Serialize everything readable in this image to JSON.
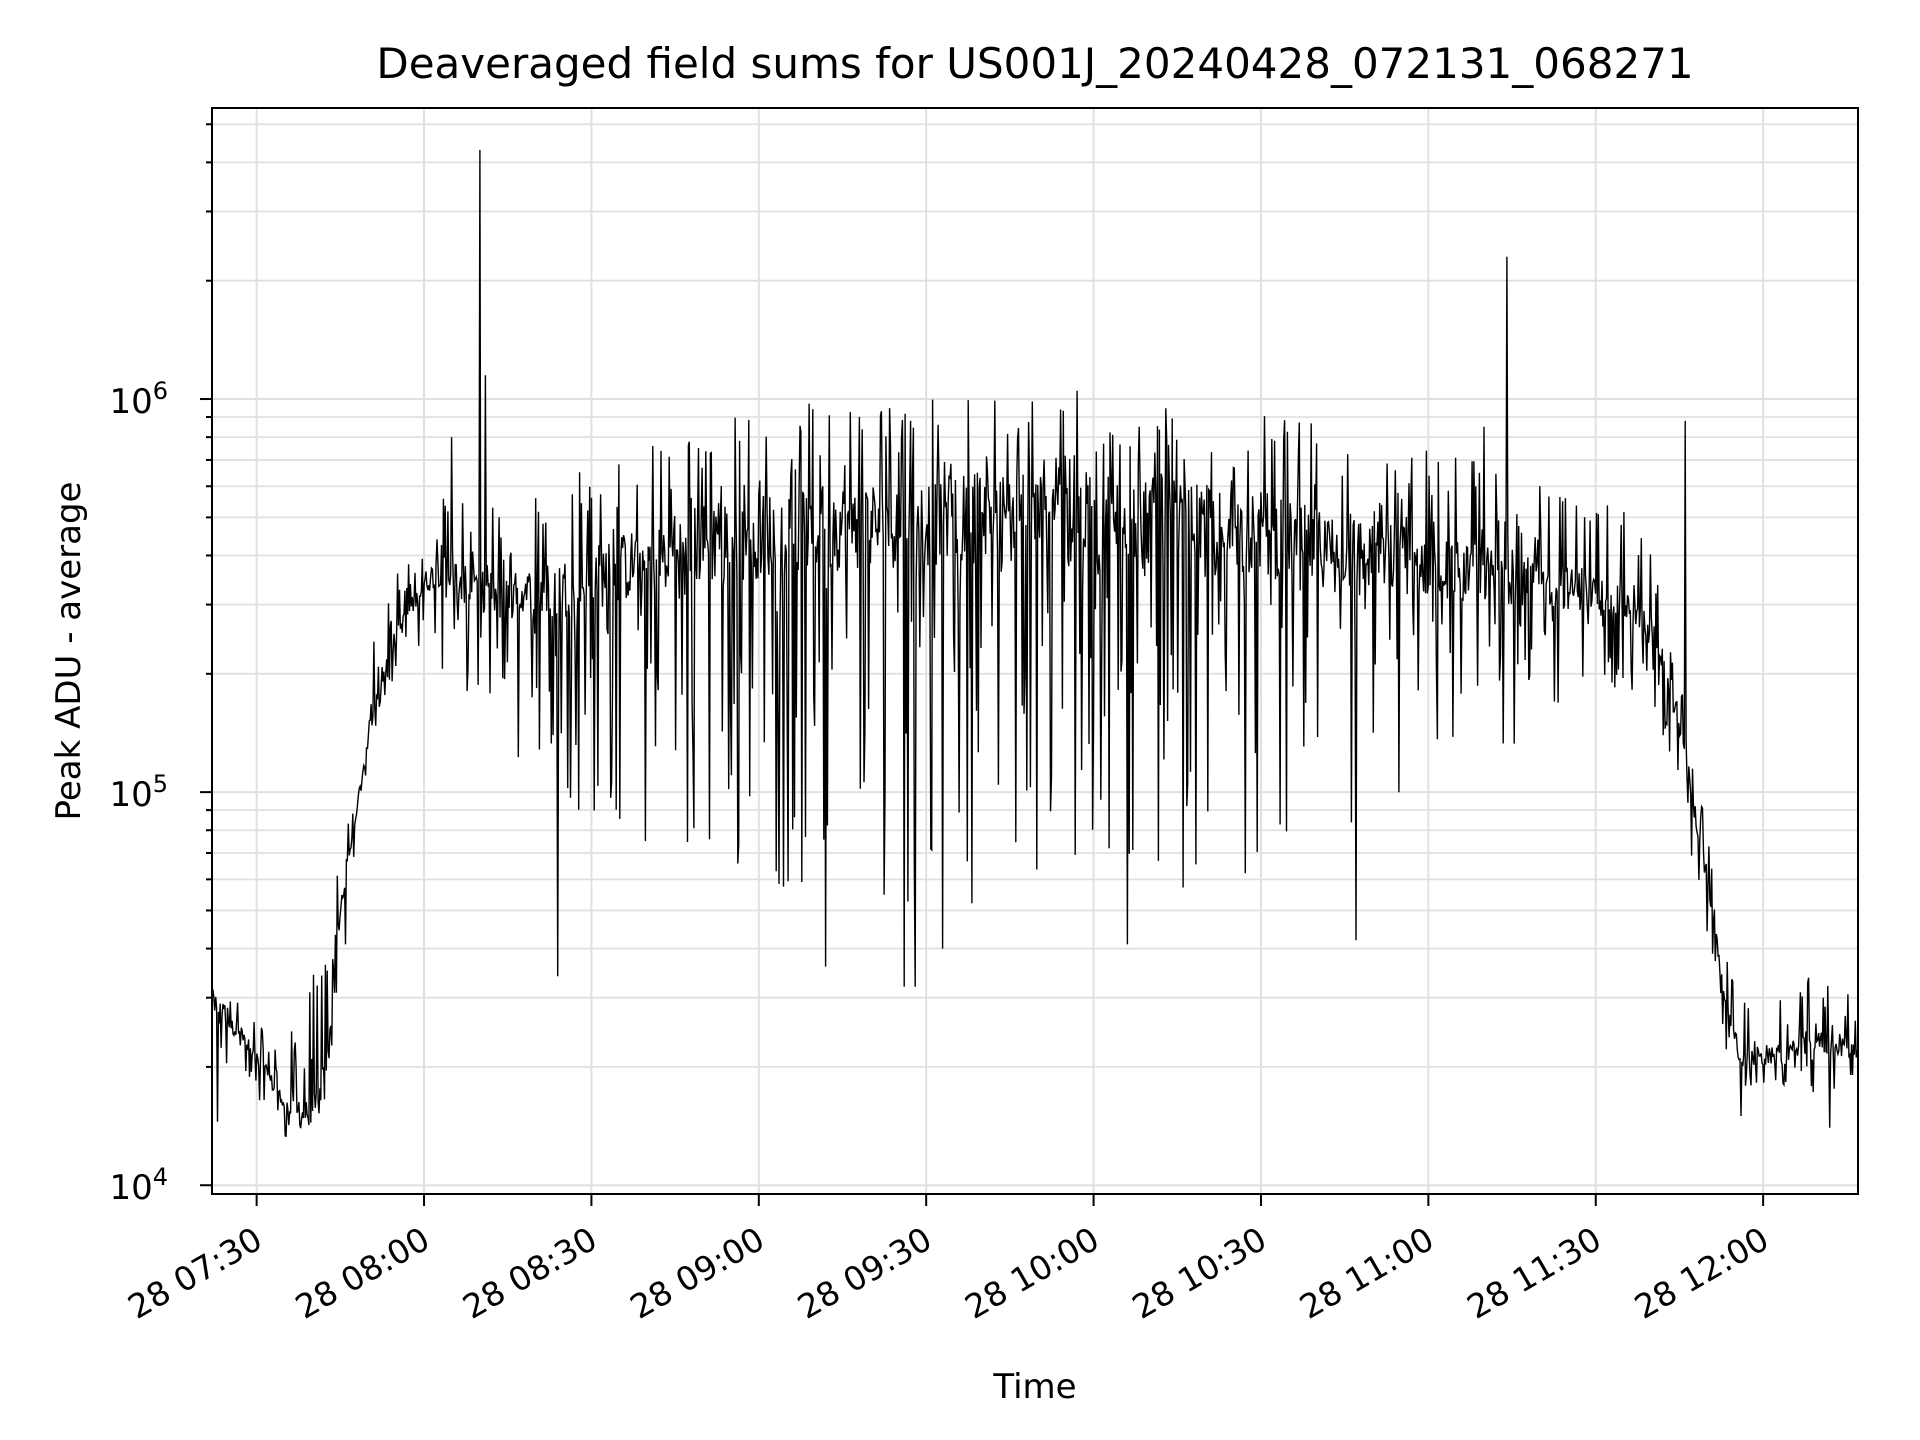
{
  "chart_data": {
    "type": "line",
    "title": "Deaveraged field sums for US001J_20240428_072131_068271",
    "xlabel": "Time",
    "ylabel": "Peak ADU - average",
    "y_scale": "log",
    "ylim": [
      9500,
      5500000
    ],
    "xlim": [
      "2024-04-28 07:22:00",
      "2024-04-28 12:17:00"
    ],
    "grid": true,
    "line_color": "#000000",
    "grid_color": "#e0e0e0",
    "x_tick_labels": [
      "28 07:30",
      "28 08:00",
      "28 08:30",
      "28 09:00",
      "28 09:30",
      "28 10:00",
      "28 10:30",
      "28 11:00",
      "28 11:30",
      "28 12:00"
    ],
    "x_ticks": [
      "2024-04-28 07:30",
      "2024-04-28 08:00",
      "2024-04-28 08:30",
      "2024-04-28 09:00",
      "2024-04-28 09:30",
      "2024-04-28 10:00",
      "2024-04-28 10:30",
      "2024-04-28 11:00",
      "2024-04-28 11:30",
      "2024-04-28 12:00"
    ],
    "y_ticks": [
      {
        "value": 10000,
        "base": "10",
        "exp": "4"
      },
      {
        "value": 100000,
        "base": "10",
        "exp": "5"
      },
      {
        "value": 1000000,
        "base": "10",
        "exp": "6"
      }
    ],
    "series": [
      {
        "x": [
          "2024-04-28 07:22",
          "2024-04-28 07:25",
          "2024-04-28 07:28",
          "2024-04-28 07:32",
          "2024-04-28 07:35",
          "2024-04-28 07:38",
          "2024-04-28 07:41",
          "2024-04-28 07:43",
          "2024-04-28 07:44",
          "2024-04-28 07:46",
          "2024-04-28 07:48",
          "2024-04-28 07:50",
          "2024-04-28 07:52",
          "2024-04-28 07:55",
          "2024-04-28 07:58",
          "2024-04-28 08:00",
          "2024-04-28 08:03",
          "2024-04-28 08:06",
          "2024-04-28 08:08",
          "2024-04-28 08:12",
          "2024-04-28 08:15",
          "2024-04-28 08:20",
          "2024-04-28 08:25",
          "2024-04-28 08:30",
          "2024-04-28 08:35",
          "2024-04-28 08:40",
          "2024-04-28 08:45",
          "2024-04-28 08:50",
          "2024-04-28 08:55",
          "2024-04-28 09:00",
          "2024-04-28 09:10",
          "2024-04-28 09:20",
          "2024-04-28 09:30",
          "2024-04-28 09:40",
          "2024-04-28 09:50",
          "2024-04-28 10:00",
          "2024-04-28 10:10",
          "2024-04-28 10:20",
          "2024-04-28 10:30",
          "2024-04-28 10:40",
          "2024-04-28 10:50",
          "2024-04-28 11:00",
          "2024-04-28 11:10",
          "2024-04-28 11:20",
          "2024-04-28 11:25",
          "2024-04-28 11:30",
          "2024-04-28 11:35",
          "2024-04-28 11:40",
          "2024-04-28 11:43",
          "2024-04-28 11:46",
          "2024-04-28 11:50",
          "2024-04-28 11:53",
          "2024-04-28 11:56",
          "2024-04-28 12:00",
          "2024-04-28 12:05",
          "2024-04-28 12:10",
          "2024-04-28 12:17"
        ],
        "y": [
          30000,
          26000,
          23000,
          19000,
          16000,
          15000,
          16000,
          22000,
          40000,
          60000,
          90000,
          140000,
          190000,
          250000,
          300000,
          340000,
          370000,
          350000,
          330000,
          320000,
          310000,
          320000,
          330000,
          350000,
          370000,
          390000,
          410000,
          430000,
          440000,
          450000,
          470000,
          480000,
          490000,
          500000,
          500000,
          500000,
          490000,
          470000,
          450000,
          420000,
          400000,
          380000,
          360000,
          340000,
          330000,
          320000,
          300000,
          260000,
          200000,
          120000,
          60000,
          30000,
          21000,
          21000,
          22000,
          23000,
          22000
        ],
        "envelope_low": [
          19000,
          18000,
          16000,
          15000,
          13000,
          13000,
          14000,
          18000,
          28000,
          50000,
          75000,
          120000,
          160000,
          200000,
          230000,
          240000,
          190000,
          170000,
          160000,
          130000,
          110000,
          100000,
          90000,
          85000,
          80000,
          70000,
          65000,
          60000,
          58000,
          56000,
          55000,
          53000,
          52000,
          52000,
          52000,
          53000,
          55000,
          58000,
          62000,
          67000,
          75000,
          90000,
          110000,
          140000,
          160000,
          190000,
          180000,
          150000,
          120000,
          80000,
          40000,
          22000,
          18000,
          17000,
          17000,
          17000,
          18000
        ],
        "envelope_high": [
          36000,
          30000,
          29000,
          25000,
          24000,
          26000,
          40000,
          38000,
          60000,
          100000,
          150000,
          220000,
          300000,
          360000,
          420000,
          500000,
          560000,
          580000,
          560000,
          560000,
          580000,
          620000,
          680000,
          720000,
          760000,
          800000,
          840000,
          880000,
          920000,
          950000,
          980000,
          1000000,
          1020000,
          1030000,
          1030000,
          1020000,
          1000000,
          970000,
          930000,
          880000,
          820000,
          760000,
          700000,
          660000,
          640000,
          600000,
          520000,
          420000,
          300000,
          170000,
          80000,
          40000,
          30000,
          30000,
          32000,
          35000,
          30000
        ],
        "spikes": [
          {
            "x": "2024-04-28 07:46",
            "y": 41000
          },
          {
            "x": "2024-04-28 08:05",
            "y": 800000
          },
          {
            "x": "2024-04-28 08:10",
            "y": 4300000
          },
          {
            "x": "2024-04-28 08:11",
            "y": 1150000
          },
          {
            "x": "2024-04-28 08:24",
            "y": 34000
          },
          {
            "x": "2024-04-28 09:12",
            "y": 36000
          },
          {
            "x": "2024-04-28 09:26",
            "y": 32000
          },
          {
            "x": "2024-04-28 09:28",
            "y": 32000
          },
          {
            "x": "2024-04-28 09:33",
            "y": 40000
          },
          {
            "x": "2024-04-28 09:57",
            "y": 1050000
          },
          {
            "x": "2024-04-28 10:06",
            "y": 41000
          },
          {
            "x": "2024-04-28 10:47",
            "y": 42000
          },
          {
            "x": "2024-04-28 11:10",
            "y": 850000
          },
          {
            "x": "2024-04-28 11:14",
            "y": 2300000
          },
          {
            "x": "2024-04-28 11:46",
            "y": 880000
          },
          {
            "x": "2024-04-28 11:44",
            "y": 160000
          },
          {
            "x": "2024-04-28 11:56",
            "y": 15000
          },
          {
            "x": "2024-04-28 12:12",
            "y": 14000
          },
          {
            "x": "2024-04-28 07:23",
            "y": 14500
          }
        ]
      }
    ]
  }
}
